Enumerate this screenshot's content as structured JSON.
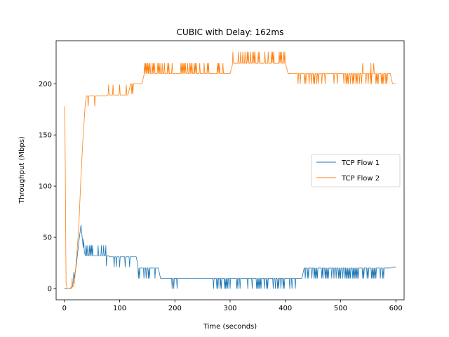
{
  "chart_data": {
    "type": "line",
    "title": "CUBIC with Delay: 162ms",
    "xlabel": "Time (seconds)",
    "ylabel": "Throughput (Mbps)",
    "xlim": [
      -15,
      615
    ],
    "ylim": [
      -11,
      242
    ],
    "xticks": [
      0,
      100,
      200,
      300,
      400,
      500,
      600
    ],
    "yticks": [
      0,
      50,
      100,
      150,
      200
    ],
    "grid": false,
    "legend_position": "center-right",
    "series": [
      {
        "name": "TCP Flow 1",
        "color": "#1f77b4",
        "base_points": [
          [
            0,
            0
          ],
          [
            5,
            0
          ],
          [
            10,
            0
          ],
          [
            14,
            2
          ],
          [
            18,
            10
          ],
          [
            22,
            25
          ],
          [
            26,
            45
          ],
          [
            30,
            62
          ],
          [
            34,
            40
          ],
          [
            38,
            32
          ],
          [
            80,
            32
          ],
          [
            82,
            31
          ],
          [
            130,
            31
          ],
          [
            134,
            20
          ],
          [
            170,
            20
          ],
          [
            174,
            10
          ],
          [
            430,
            10
          ],
          [
            434,
            20
          ],
          [
            590,
            20
          ],
          [
            594,
            21
          ],
          [
            600,
            21
          ]
        ],
        "spike_segments": [
          {
            "x0": 15,
            "x1": 30,
            "step": 2,
            "delta": 8,
            "prob": 0.5
          },
          {
            "x0": 35,
            "x1": 75,
            "step": 2,
            "delta": 10,
            "prob": 0.4
          },
          {
            "x0": 76,
            "x1": 130,
            "step": 2,
            "delta": -10,
            "prob": 0.3
          },
          {
            "x0": 132,
            "x1": 172,
            "step": 2,
            "delta": -10,
            "prob": 0.3
          },
          {
            "x0": 195,
            "x1": 235,
            "step": 3,
            "delta": -10,
            "prob": 0.25
          },
          {
            "x0": 268,
            "x1": 420,
            "step": 2,
            "delta": -10,
            "prob": 0.45
          },
          {
            "x0": 432,
            "x1": 580,
            "step": 2,
            "delta": -10,
            "prob": 0.55
          },
          {
            "x0": 585,
            "x1": 598,
            "step": 2,
            "delta": 11,
            "prob": 0.5
          }
        ]
      },
      {
        "name": "TCP Flow 2",
        "color": "#ff7f0e",
        "base_points": [
          [
            0,
            178
          ],
          [
            1,
            160
          ],
          [
            3,
            5
          ],
          [
            5,
            0
          ],
          [
            10,
            0
          ],
          [
            14,
            0
          ],
          [
            18,
            5
          ],
          [
            22,
            30
          ],
          [
            26,
            60
          ],
          [
            30,
            110
          ],
          [
            34,
            150
          ],
          [
            38,
            182
          ],
          [
            40,
            188
          ],
          [
            75,
            188
          ],
          [
            78,
            189
          ],
          [
            115,
            189
          ],
          [
            120,
            200
          ],
          [
            140,
            200
          ],
          [
            145,
            210
          ],
          [
            300,
            210
          ],
          [
            305,
            220
          ],
          [
            400,
            220
          ],
          [
            405,
            210
          ],
          [
            590,
            210
          ],
          [
            594,
            200
          ],
          [
            600,
            200
          ]
        ],
        "spike_segments": [
          {
            "x0": 10,
            "x1": 22,
            "step": 2,
            "delta": 10,
            "prob": 0.4
          },
          {
            "x0": 40,
            "x1": 75,
            "step": 3,
            "delta": -10,
            "prob": 0.25
          },
          {
            "x0": 76,
            "x1": 112,
            "step": 2,
            "delta": 10,
            "prob": 0.5
          },
          {
            "x0": 120,
            "x1": 142,
            "step": 2,
            "delta": -10,
            "prob": 0.3
          },
          {
            "x0": 145,
            "x1": 300,
            "step": 2,
            "delta": 10,
            "prob": 0.5
          },
          {
            "x0": 305,
            "x1": 400,
            "step": 2,
            "delta": 11,
            "prob": 0.4
          },
          {
            "x0": 405,
            "x1": 460,
            "step": 2,
            "delta": -10,
            "prob": 0.35
          },
          {
            "x0": 460,
            "x1": 590,
            "step": 2,
            "delta": -10,
            "prob": 0.4
          },
          {
            "x0": 540,
            "x1": 560,
            "step": 5,
            "delta": 10,
            "prob": 0.6
          }
        ]
      }
    ]
  }
}
